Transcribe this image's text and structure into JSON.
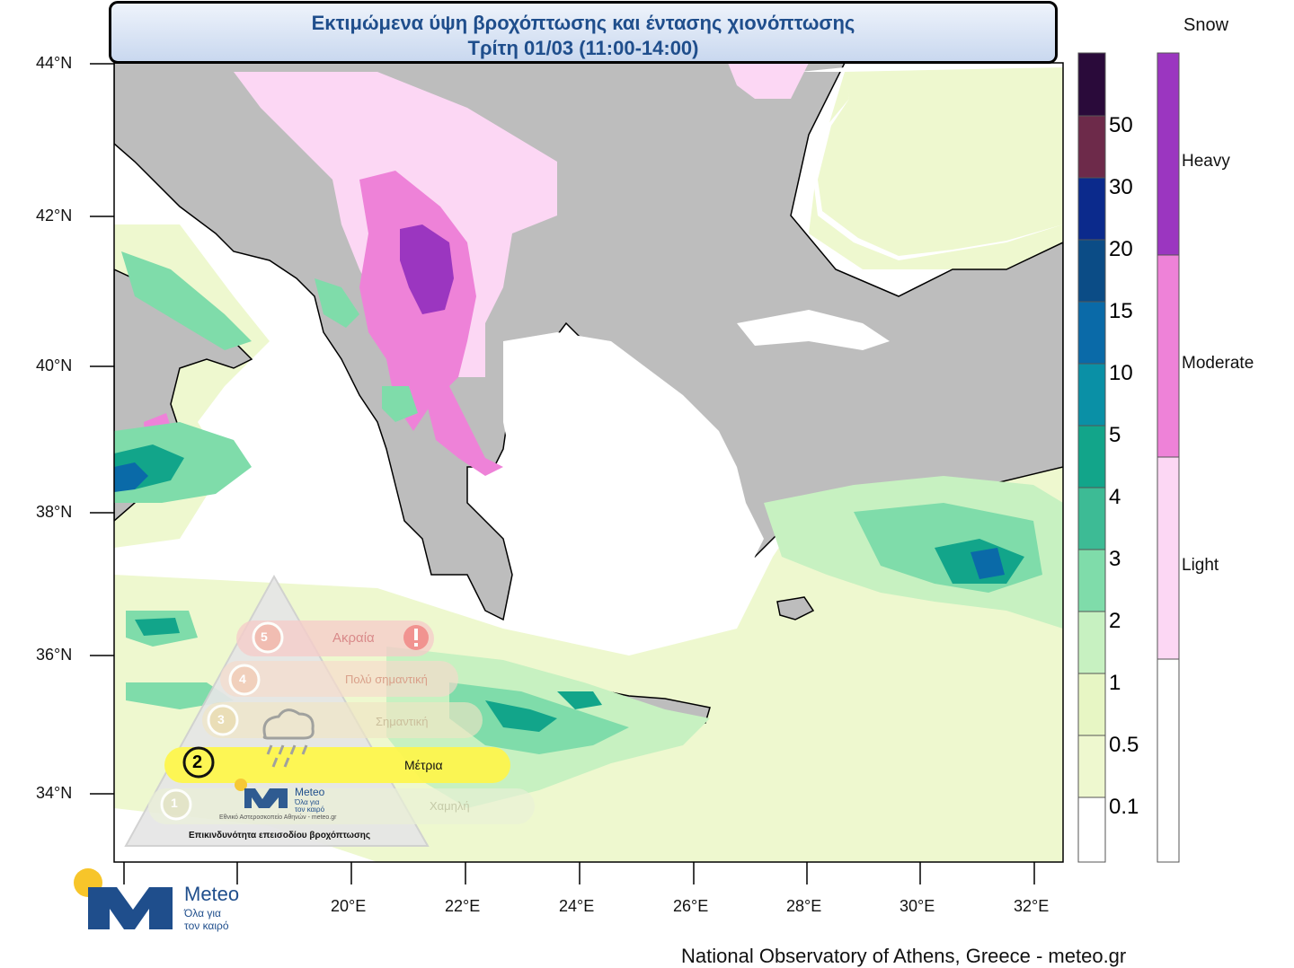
{
  "title": {
    "line1": "Εκτιμώμενα ύψη βροχόπτωσης και έντασης χιονόπτωσης",
    "line2": "Τρίτη 01/03 (11:00-14:00)"
  },
  "footer": "National Observatory of Athens, Greece - meteo.gr",
  "latitude_labels": [
    "44°N",
    "42°N",
    "40°N",
    "38°N",
    "36°N",
    "34°N"
  ],
  "longitude_labels": [
    "20°E",
    "22°E",
    "24°E",
    "26°E",
    "28°E",
    "30°E",
    "32°E"
  ],
  "rain_scale": {
    "labels": [
      "50",
      "30",
      "20",
      "15",
      "10",
      "5",
      "4",
      "3",
      "2",
      "1",
      "0.5",
      "0.1"
    ],
    "colors": [
      "#2a0a3a",
      "#6d2a4a",
      "#0b2a8c",
      "#0b4c86",
      "#0a6aa8",
      "#0a90a6",
      "#12a58a",
      "#3dbb95",
      "#7fdcaa",
      "#c7f1c1",
      "#e7f6c4",
      "#eef8cf",
      "#ffffff"
    ]
  },
  "snow_scale": {
    "title": "Snow",
    "labels": [
      "Heavy",
      "Moderate",
      "Light"
    ],
    "colors": [
      "#9b36c0",
      "#ee82d8",
      "#fcd7f4",
      "#ffffff"
    ]
  },
  "risk_panel": {
    "levels": [
      {
        "number": "5",
        "label": "Ακραία"
      },
      {
        "number": "4",
        "label": "Πολύ σημαντική"
      },
      {
        "number": "3",
        "label": "Σημαντική"
      },
      {
        "number": "2",
        "label": "Μέτρια"
      },
      {
        "number": "1",
        "label": "Χαμηλή"
      }
    ],
    "active_level": "2",
    "caption": "Επικινδυνότητα επεισοδίου βροχόπτωσης",
    "org_line": "Εθνικό Αστεροσκοπείο Αθηνών - meteo.gr",
    "logo_name": "Meteo",
    "logo_slogan_1": "Όλα για",
    "logo_slogan_2": "τον καιρό"
  },
  "logo": {
    "name": "Meteo",
    "slogan_1": "Όλα για",
    "slogan_2": "τον καιρό"
  },
  "icons": [
    "rain-cloud-icon",
    "exclamation-icon",
    "meteo-logo-icon"
  ]
}
